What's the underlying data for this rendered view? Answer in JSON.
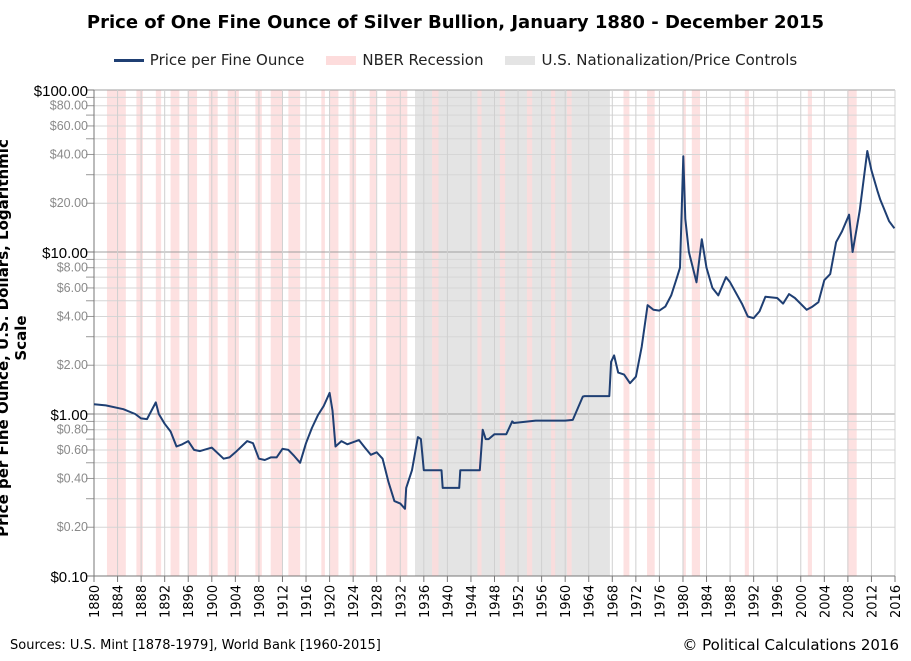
{
  "chart_data": {
    "type": "line",
    "title": "Price of One Fine Ounce of Silver Bullion, January 1880 - December 2015",
    "ylabel": "Price per Fine Ounce, U.S. Dollars, Logarithmic Scale",
    "yscale": "log",
    "ylim": [
      0.1,
      100
    ],
    "xlim": [
      1880,
      2016
    ],
    "grid": true,
    "legend_placement": "top",
    "legend": [
      "Price per Fine Ounce",
      "NBER Recession",
      "U.S. Nationalization/Price Controls"
    ],
    "colors": {
      "line": "#1f3f73",
      "recession": "#fddcdc",
      "nationalization": "#e4e4e4"
    },
    "x_ticks": [
      "1880",
      "1884",
      "1888",
      "1892",
      "1896",
      "1900",
      "1904",
      "1908",
      "1912",
      "1916",
      "1920",
      "1924",
      "1928",
      "1932",
      "1936",
      "1940",
      "1944",
      "1948",
      "1952",
      "1956",
      "1960",
      "1964",
      "1968",
      "1972",
      "1976",
      "1980",
      "1984",
      "1988",
      "1992",
      "1996",
      "2000",
      "2004",
      "2008",
      "2012",
      "2016"
    ],
    "y_ticks_major": [
      {
        "v": 100,
        "label": "$100.00"
      },
      {
        "v": 10,
        "label": "$10.00"
      },
      {
        "v": 1,
        "label": "$1.00"
      },
      {
        "v": 0.1,
        "label": "$0.10"
      }
    ],
    "y_ticks_minor": [
      {
        "v": 80,
        "label": "$80.00"
      },
      {
        "v": 60,
        "label": "$60.00"
      },
      {
        "v": 40,
        "label": "$40.00"
      },
      {
        "v": 20,
        "label": "$20.00"
      },
      {
        "v": 8,
        "label": "$8.00"
      },
      {
        "v": 6,
        "label": "$6.00"
      },
      {
        "v": 4,
        "label": "$4.00"
      },
      {
        "v": 2,
        "label": "$2.00"
      },
      {
        "v": 0.8,
        "label": "$0.80"
      },
      {
        "v": 0.6,
        "label": "$0.60"
      },
      {
        "v": 0.4,
        "label": "$0.40"
      },
      {
        "v": 0.2,
        "label": "$0.20"
      }
    ],
    "recessions": [
      [
        1882.2,
        1885.4
      ],
      [
        1887.2,
        1888.3
      ],
      [
        1890.5,
        1891.4
      ],
      [
        1893.0,
        1894.5
      ],
      [
        1895.9,
        1897.5
      ],
      [
        1899.5,
        1901.0
      ],
      [
        1902.7,
        1904.6
      ],
      [
        1907.4,
        1908.5
      ],
      [
        1910.0,
        1912.0
      ],
      [
        1913.0,
        1915.0
      ],
      [
        1918.6,
        1919.2
      ],
      [
        1920.0,
        1921.5
      ],
      [
        1923.4,
        1924.5
      ],
      [
        1926.8,
        1927.9
      ],
      [
        1929.6,
        1933.2
      ],
      [
        1937.4,
        1938.5
      ],
      [
        1945.1,
        1945.8
      ],
      [
        1948.9,
        1949.8
      ],
      [
        1953.5,
        1954.4
      ],
      [
        1957.6,
        1958.3
      ],
      [
        1960.3,
        1961.1
      ],
      [
        1969.9,
        1970.9
      ],
      [
        1973.9,
        1975.2
      ],
      [
        1980.0,
        1980.5
      ],
      [
        1981.5,
        1982.9
      ],
      [
        1990.5,
        1991.2
      ],
      [
        2001.2,
        2001.9
      ],
      [
        2007.9,
        2009.5
      ]
    ],
    "nationalization": [
      1934.5,
      1967.6
    ],
    "series": [
      {
        "name": "Price per Fine Ounce",
        "x": [
          1880,
          1882,
          1885,
          1887,
          1888,
          1889,
          1890.5,
          1891,
          1892,
          1893,
          1894,
          1895,
          1896,
          1897,
          1898,
          1900,
          1902,
          1903,
          1904,
          1906,
          1907,
          1908,
          1909,
          1910,
          1911,
          1912,
          1913,
          1914,
          1915,
          1916,
          1917,
          1918,
          1919,
          1920,
          1920.5,
          1921,
          1922,
          1923,
          1924,
          1925,
          1926,
          1927,
          1928,
          1929,
          1930,
          1931,
          1932,
          1932.8,
          1933,
          1934,
          1935,
          1935.5,
          1936,
          1939,
          1939.2,
          1942,
          1942.2,
          1945.5,
          1946,
          1946.5,
          1947,
          1948,
          1950,
          1951,
          1951.3,
          1955,
          1960,
          1961.3,
          1963,
          1963.3,
          1967.5,
          1967.8,
          1968.3,
          1969,
          1970,
          1971,
          1972,
          1973,
          1974,
          1975,
          1976,
          1977,
          1978,
          1979,
          1979.5,
          1980.05,
          1980.4,
          1981,
          1982.3,
          1983.2,
          1984,
          1985,
          1986,
          1987.3,
          1988,
          1990,
          1991,
          1992,
          1993,
          1994,
          1996,
          1997,
          1998,
          1999,
          2001,
          2002,
          2003,
          2004,
          2005,
          2006,
          2007,
          2008.2,
          2008.8,
          2009.5,
          2010,
          2011.3,
          2012,
          2013,
          2013.5,
          2014,
          2015,
          2015.9
        ],
        "values": [
          1.15,
          1.13,
          1.07,
          1.0,
          0.94,
          0.93,
          1.18,
          1.0,
          0.87,
          0.78,
          0.63,
          0.65,
          0.68,
          0.6,
          0.59,
          0.62,
          0.53,
          0.54,
          0.58,
          0.68,
          0.66,
          0.53,
          0.52,
          0.54,
          0.54,
          0.61,
          0.6,
          0.55,
          0.5,
          0.66,
          0.82,
          0.98,
          1.12,
          1.35,
          1.05,
          0.63,
          0.68,
          0.65,
          0.67,
          0.69,
          0.62,
          0.56,
          0.58,
          0.53,
          0.38,
          0.29,
          0.28,
          0.26,
          0.35,
          0.45,
          0.72,
          0.7,
          0.45,
          0.45,
          0.35,
          0.35,
          0.45,
          0.45,
          0.8,
          0.7,
          0.7,
          0.75,
          0.75,
          0.9,
          0.88,
          0.91,
          0.91,
          0.92,
          1.28,
          1.29,
          1.29,
          2.1,
          2.3,
          1.8,
          1.75,
          1.55,
          1.7,
          2.6,
          4.7,
          4.4,
          4.35,
          4.6,
          5.4,
          7,
          8,
          39,
          16,
          10,
          6.5,
          12,
          8,
          6,
          5.4,
          7,
          6.5,
          4.8,
          4,
          3.9,
          4.3,
          5.3,
          5.2,
          4.8,
          5.5,
          5.2,
          4.4,
          4.6,
          4.9,
          6.7,
          7.3,
          11.5,
          13.4,
          17,
          10,
          14,
          18,
          42,
          32,
          24,
          21,
          19,
          15.5,
          14
        ]
      }
    ]
  },
  "sources": "Sources: U.S. Mint  [1878-1979], World Bank [1960-2015]",
  "copyright": "© Political Calculations 2016"
}
